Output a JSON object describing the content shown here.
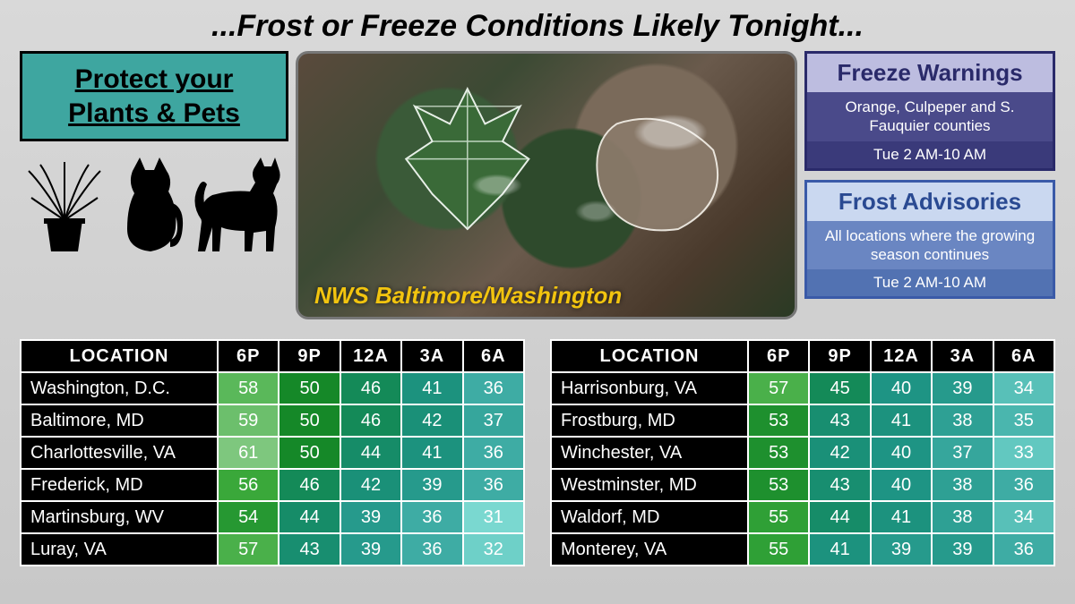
{
  "headline": "...Frost or Freeze Conditions Likely Tonight...",
  "protect": {
    "line1": "Protect your",
    "line2": "Plants & Pets"
  },
  "photo_caption": "NWS Baltimore/Washington",
  "freeze": {
    "title": "Freeze Warnings",
    "body": "Orange, Culpeper and S. Fauquier counties",
    "time": "Tue 2 AM-10 AM",
    "border": "#2a2a6a",
    "title_bg": "#bdbde0",
    "title_color": "#2a2a6a",
    "body_bg": "#4a4a8a",
    "body_color": "#ffffff",
    "time_bg": "#3a3a7a",
    "time_color": "#ffffff"
  },
  "frost": {
    "title": "Frost Advisories",
    "body": "All locations where the growing season continues",
    "time": "Tue 2 AM-10 AM",
    "border": "#3a5aa8",
    "title_bg": "#cad8f0",
    "title_color": "#2a4a92",
    "body_bg": "#6a86c2",
    "body_color": "#ffffff",
    "time_bg": "#5272b2",
    "time_color": "#ffffff"
  },
  "columns": [
    "LOCATION",
    "6P",
    "9P",
    "12A",
    "3A",
    "6A"
  ],
  "temp_colors": {
    "61": "#7ec77e",
    "59": "#6cbf6c",
    "58": "#5ab85a",
    "57": "#4ab04a",
    "56": "#3aa83a",
    "55": "#2fa036",
    "54": "#269832",
    "53": "#1e902e",
    "50": "#158828",
    "46": "#148a58",
    "45": "#148a58",
    "44": "#168c68",
    "43": "#188e70",
    "42": "#1a9078",
    "41": "#1c927e",
    "40": "#1e9484",
    "39": "#269a8c",
    "38": "#2ea094",
    "37": "#36a69c",
    "36": "#3eaca4",
    "35": "#4ab6ae",
    "34": "#58c0b8",
    "33": "#62c8c0",
    "32": "#6ed0c8",
    "31": "#7ad8d0"
  },
  "table_left": [
    {
      "loc": "Washington, D.C.",
      "v": [
        58,
        50,
        46,
        41,
        36
      ]
    },
    {
      "loc": "Baltimore, MD",
      "v": [
        59,
        50,
        46,
        42,
        37
      ]
    },
    {
      "loc": "Charlottesville, VA",
      "v": [
        61,
        50,
        44,
        41,
        36
      ]
    },
    {
      "loc": "Frederick, MD",
      "v": [
        56,
        46,
        42,
        39,
        36
      ]
    },
    {
      "loc": "Martinsburg, WV",
      "v": [
        54,
        44,
        39,
        36,
        31
      ]
    },
    {
      "loc": "Luray, VA",
      "v": [
        57,
        43,
        39,
        36,
        32
      ]
    }
  ],
  "table_right": [
    {
      "loc": "Harrisonburg, VA",
      "v": [
        57,
        45,
        40,
        39,
        34
      ]
    },
    {
      "loc": "Frostburg, MD",
      "v": [
        53,
        43,
        41,
        38,
        35
      ]
    },
    {
      "loc": "Winchester, VA",
      "v": [
        53,
        42,
        40,
        37,
        33
      ]
    },
    {
      "loc": "Westminster, MD",
      "v": [
        53,
        43,
        40,
        38,
        36
      ]
    },
    {
      "loc": "Waldorf, MD",
      "v": [
        55,
        44,
        41,
        38,
        34
      ]
    },
    {
      "loc": "Monterey, VA",
      "v": [
        55,
        41,
        39,
        39,
        36
      ]
    }
  ]
}
